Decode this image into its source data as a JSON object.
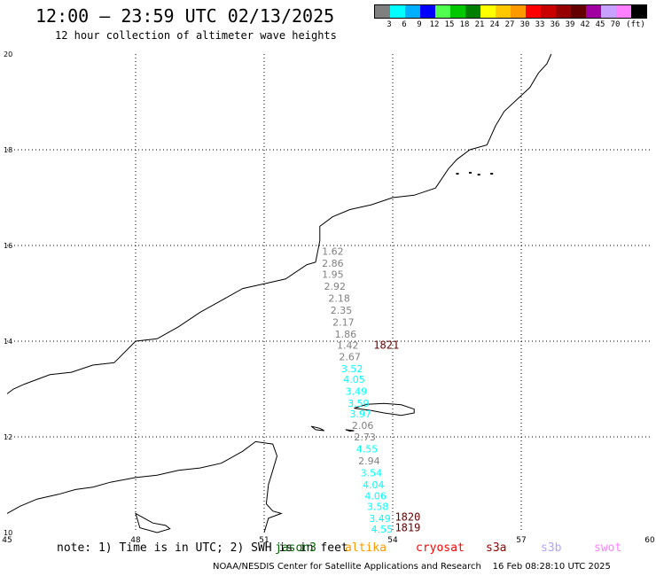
{
  "header": {
    "title": "12:00 – 23:59 UTC 02/13/2025",
    "subtitle": "12 hour collection of altimeter wave heights"
  },
  "legend": {
    "colors": [
      "#808080",
      "#00ffff",
      "#00b0ff",
      "#0000ff",
      "#50ff50",
      "#00c800",
      "#008000",
      "#ffff00",
      "#ffc800",
      "#ff9900",
      "#ff0000",
      "#c80000",
      "#960000",
      "#640000",
      "#a000a0",
      "#c8a0ff",
      "#ff80ff",
      "#000000"
    ],
    "labels": [
      "3",
      "6",
      "9",
      "12",
      "15",
      "18",
      "21",
      "24",
      "27",
      "30",
      "33",
      "36",
      "39",
      "42",
      "45",
      "70",
      "(ft)"
    ]
  },
  "map": {
    "lon_min": 45,
    "lon_max": 60,
    "lat_min": 10,
    "lat_max": 20,
    "x_ticks": [
      "45",
      "48",
      "51",
      "54",
      "57",
      "60"
    ],
    "y_ticks": [
      "20",
      "18",
      "16",
      "14",
      "12",
      "10"
    ],
    "coast_mainland": [
      [
        45,
        12.9
      ],
      [
        45.15,
        13.0
      ],
      [
        45.4,
        13.1
      ],
      [
        46.0,
        13.3
      ],
      [
        46.5,
        13.35
      ],
      [
        47.0,
        13.5
      ],
      [
        47.5,
        13.55
      ],
      [
        48.0,
        14.0
      ],
      [
        48.5,
        14.05
      ],
      [
        49.0,
        14.3
      ],
      [
        49.5,
        14.6
      ],
      [
        50.0,
        14.85
      ],
      [
        50.5,
        15.1
      ],
      [
        51.0,
        15.2
      ],
      [
        51.5,
        15.3
      ],
      [
        52.0,
        15.6
      ],
      [
        52.2,
        15.65
      ],
      [
        52.3,
        16.1
      ],
      [
        52.3,
        16.4
      ],
      [
        52.6,
        16.6
      ],
      [
        53.0,
        16.75
      ],
      [
        53.5,
        16.85
      ],
      [
        54.0,
        17.0
      ],
      [
        54.5,
        17.05
      ],
      [
        55.0,
        17.2
      ],
      [
        55.3,
        17.6
      ],
      [
        55.5,
        17.8
      ],
      [
        55.8,
        18.0
      ],
      [
        56.2,
        18.1
      ],
      [
        56.4,
        18.5
      ],
      [
        56.6,
        18.8
      ],
      [
        56.9,
        19.05
      ],
      [
        57.2,
        19.3
      ],
      [
        57.4,
        19.6
      ],
      [
        57.6,
        19.8
      ],
      [
        57.7,
        20.0
      ]
    ],
    "coast_africa": [
      [
        45,
        10.4
      ],
      [
        45.3,
        10.55
      ],
      [
        45.7,
        10.7
      ],
      [
        46.2,
        10.8
      ],
      [
        46.6,
        10.9
      ],
      [
        47.0,
        10.95
      ],
      [
        47.4,
        11.05
      ],
      [
        48.0,
        11.15
      ],
      [
        48.5,
        11.2
      ],
      [
        49.0,
        11.3
      ],
      [
        49.5,
        11.35
      ],
      [
        50.0,
        11.45
      ],
      [
        50.5,
        11.7
      ],
      [
        50.8,
        11.9
      ],
      [
        51.2,
        11.85
      ],
      [
        51.3,
        11.6
      ],
      [
        51.2,
        11.3
      ],
      [
        51.1,
        11.0
      ],
      [
        51.05,
        10.6
      ],
      [
        51.2,
        10.45
      ],
      [
        51.4,
        10.4
      ],
      [
        51.1,
        10.3
      ],
      [
        51.0,
        10.0
      ]
    ],
    "islands": [
      [
        [
          53.1,
          12.6
        ],
        [
          53.5,
          12.55
        ],
        [
          53.8,
          12.5
        ],
        [
          54.2,
          12.45
        ],
        [
          54.5,
          12.5
        ],
        [
          54.5,
          12.58
        ],
        [
          54.2,
          12.67
        ],
        [
          53.8,
          12.7
        ],
        [
          53.4,
          12.68
        ],
        [
          53.1,
          12.6
        ]
      ],
      [
        [
          52.1,
          12.22
        ],
        [
          52.3,
          12.18
        ],
        [
          52.4,
          12.13
        ],
        [
          52.2,
          12.15
        ],
        [
          52.1,
          12.22
        ]
      ],
      [
        [
          52.9,
          12.15
        ],
        [
          53.0,
          12.12
        ],
        [
          53.1,
          12.13
        ],
        [
          52.9,
          12.15
        ]
      ],
      [
        [
          48.0,
          10.4
        ],
        [
          48.2,
          10.3
        ],
        [
          48.4,
          10.2
        ],
        [
          48.7,
          10.15
        ],
        [
          48.8,
          10.08
        ],
        [
          48.5,
          10.0
        ],
        [
          48.1,
          10.1
        ],
        [
          48.0,
          10.4
        ]
      ]
    ],
    "small_islands": [
      [
        55.5,
        17.5
      ],
      [
        55.8,
        17.52
      ],
      [
        56.0,
        17.48
      ],
      [
        56.3,
        17.5
      ]
    ]
  },
  "chart_data": {
    "type": "scatter",
    "title": "12:00 – 23:59 UTC 02/13/2025",
    "subtitle": "12 hour collection of altimeter wave heights",
    "xlabel": "",
    "ylabel": "",
    "xlim": [
      45,
      60
    ],
    "ylim": [
      10,
      20
    ],
    "grid": true,
    "series": [
      {
        "name": "jason3",
        "points": [
          {
            "lon": 52.6,
            "lat": 15.88,
            "label": "1.62"
          },
          {
            "lon": 52.6,
            "lat": 15.63,
            "label": "2.86"
          },
          {
            "lon": 52.6,
            "lat": 15.4,
            "label": "1.95"
          },
          {
            "lon": 52.65,
            "lat": 15.15,
            "label": "2.92"
          },
          {
            "lon": 52.75,
            "lat": 14.9,
            "label": "2.18"
          },
          {
            "lon": 52.8,
            "lat": 14.65,
            "label": "2.35"
          },
          {
            "lon": 52.85,
            "lat": 14.4,
            "label": "2.17"
          },
          {
            "lon": 52.9,
            "lat": 14.15,
            "label": "1.86"
          },
          {
            "lon": 52.95,
            "lat": 13.92,
            "label": "1.42"
          },
          {
            "lon": 53.0,
            "lat": 13.68,
            "label": "2.67"
          },
          {
            "lon": 53.05,
            "lat": 13.43,
            "label": "3.52"
          },
          {
            "lon": 53.1,
            "lat": 13.2,
            "label": "4.05"
          },
          {
            "lon": 53.15,
            "lat": 12.95,
            "label": "3.49"
          },
          {
            "lon": 53.2,
            "lat": 12.7,
            "label": "3.59"
          },
          {
            "lon": 53.25,
            "lat": 12.48,
            "label": "3.97"
          },
          {
            "lon": 53.3,
            "lat": 12.24,
            "label": "2.06"
          },
          {
            "lon": 53.35,
            "lat": 12.0,
            "label": "2.73"
          },
          {
            "lon": 53.4,
            "lat": 11.75,
            "label": "4.55"
          },
          {
            "lon": 53.45,
            "lat": 11.5,
            "label": "2.94"
          },
          {
            "lon": 53.5,
            "lat": 11.25,
            "label": "3.54"
          },
          {
            "lon": 53.55,
            "lat": 11.0,
            "label": "4.04"
          },
          {
            "lon": 53.6,
            "lat": 10.77,
            "label": "4.06"
          },
          {
            "lon": 53.65,
            "lat": 10.55,
            "label": "3.58"
          },
          {
            "lon": 53.7,
            "lat": 10.3,
            "label": "3.49"
          },
          {
            "lon": 53.75,
            "lat": 10.07,
            "label": "4.55"
          }
        ]
      }
    ],
    "time_labels": [
      {
        "lon": 53.85,
        "lat": 13.92,
        "label": "1821"
      },
      {
        "lon": 54.35,
        "lat": 10.32,
        "label": "1820"
      },
      {
        "lon": 54.35,
        "lat": 10.1,
        "label": "1819"
      }
    ]
  },
  "note": {
    "text": "note: 1) Time is in UTC; 2) SWH is in feet",
    "satellites": [
      {
        "name": "jason3",
        "color": "#006400"
      },
      {
        "name": "altika",
        "color": "#ff9900"
      },
      {
        "name": "cryosat",
        "color": "#ff0000"
      },
      {
        "name": "s3a",
        "color": "#960000"
      },
      {
        "name": "s3b",
        "color": "#b4a0ff"
      },
      {
        "name": "swot",
        "color": "#ff80ff"
      }
    ]
  },
  "footer": {
    "agency": "NOAA/NESDIS Center for Satellite Applications and Research",
    "timestamp": "16 Feb 08:28:10 UTC 2025"
  }
}
